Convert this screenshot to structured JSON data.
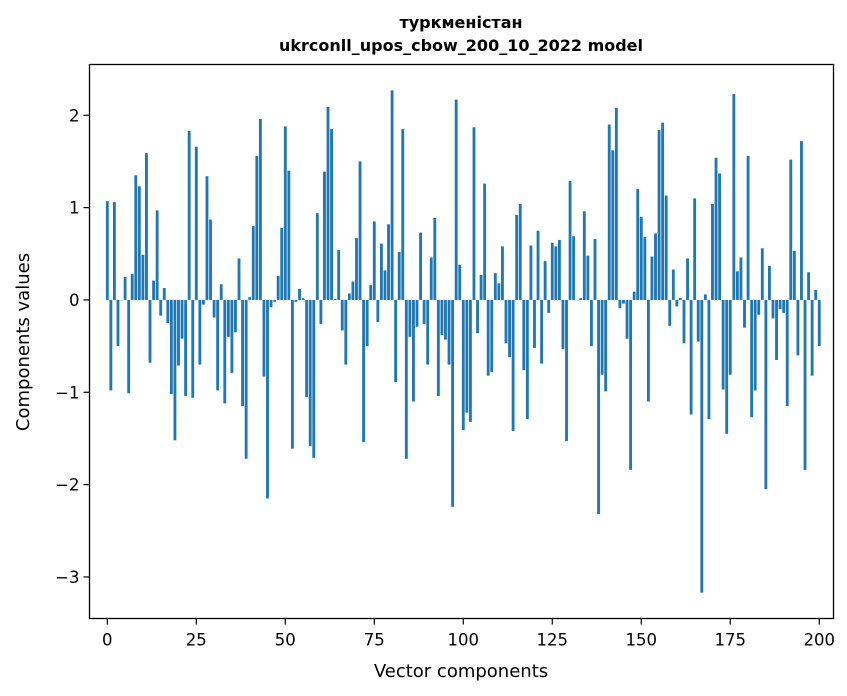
{
  "chart_data": {
    "type": "bar",
    "title_line1": "туркменістан",
    "title_line2": "ukrconll_upos_cbow_200_10_2022 model",
    "xlabel": "Vector components",
    "ylabel": "Components values",
    "xlim": [
      -5,
      204
    ],
    "ylim": [
      -3.45,
      2.55
    ],
    "xticks": [
      0,
      25,
      50,
      75,
      100,
      125,
      150,
      175,
      200
    ],
    "yticks": [
      -3,
      -2,
      -1,
      0,
      1,
      2
    ],
    "xtick_labels": [
      "0",
      "25",
      "50",
      "75",
      "100",
      "125",
      "150",
      "175",
      "200"
    ],
    "ytick_labels": [
      "−3",
      "−2",
      "−1",
      "0",
      "1",
      "2"
    ],
    "bar_color": "#1f77b4",
    "values": [
      1.07,
      -0.98,
      1.06,
      -0.5,
      0.0,
      0.25,
      -1.01,
      0.28,
      1.35,
      1.23,
      0.49,
      1.59,
      -0.68,
      0.21,
      0.97,
      -0.17,
      0.13,
      -0.25,
      -1.02,
      -1.52,
      -0.71,
      -0.42,
      -1.04,
      1.83,
      -1.06,
      1.66,
      -0.7,
      -0.05,
      1.34,
      0.87,
      -0.19,
      -0.98,
      0.17,
      -1.12,
      -0.4,
      -0.79,
      -0.35,
      0.45,
      -1.15,
      -1.72,
      0.03,
      0.8,
      1.56,
      1.96,
      -0.83,
      -2.15,
      -0.08,
      -0.02,
      0.26,
      0.78,
      1.88,
      1.4,
      -1.61,
      -0.02,
      0.12,
      0.02,
      -1.05,
      -1.58,
      -1.71,
      0.94,
      -0.26,
      1.39,
      2.09,
      1.85,
      0.01,
      0.54,
      -0.33,
      -0.7,
      0.07,
      0.2,
      0.67,
      1.5,
      -1.54,
      -0.5,
      0.16,
      0.85,
      -0.24,
      0.61,
      0.32,
      0.82,
      2.27,
      -0.89,
      0.52,
      1.85,
      -1.72,
      -0.4,
      -1.1,
      -0.29,
      0.73,
      -0.26,
      -0.7,
      0.46,
      0.89,
      -1.04,
      -0.38,
      -0.43,
      -0.7,
      -2.24,
      2.17,
      0.38,
      -1.41,
      -1.22,
      -1.32,
      1.87,
      -0.36,
      0.27,
      1.26,
      -0.82,
      -0.78,
      0.29,
      0.18,
      0.58,
      -0.47,
      -0.62,
      -1.42,
      0.92,
      1.04,
      -0.76,
      -1.29,
      0.59,
      -0.52,
      0.75,
      -0.69,
      0.42,
      -0.14,
      0.62,
      0.58,
      0.65,
      -0.53,
      -1.53,
      1.29,
      0.69,
      0.0,
      0.02,
      0.96,
      0.48,
      -0.5,
      0.66,
      -2.32,
      -0.81,
      -0.99,
      1.9,
      1.62,
      2.08,
      -0.09,
      -0.04,
      -0.42,
      -1.84,
      0.09,
      1.2,
      0.9,
      0.68,
      -1.1,
      0.47,
      0.72,
      1.84,
      1.92,
      1.13,
      -0.28,
      0.33,
      -0.07,
      0.02,
      -0.47,
      0.45,
      -1.24,
      1.1,
      -0.45,
      -3.17,
      0.06,
      -1.29,
      1.04,
      1.54,
      1.37,
      -0.97,
      -1.45,
      -0.81,
      2.23,
      0.31,
      0.46,
      -0.3,
      1.56,
      -1.27,
      -0.98,
      -0.16,
      0.56,
      -2.05,
      0.37,
      -0.2,
      -0.65,
      -0.1,
      -0.14,
      -1.15,
      1.52,
      0.53,
      -0.6,
      1.72,
      -1.84,
      0.3,
      -0.82,
      0.11,
      -0.5
    ]
  }
}
